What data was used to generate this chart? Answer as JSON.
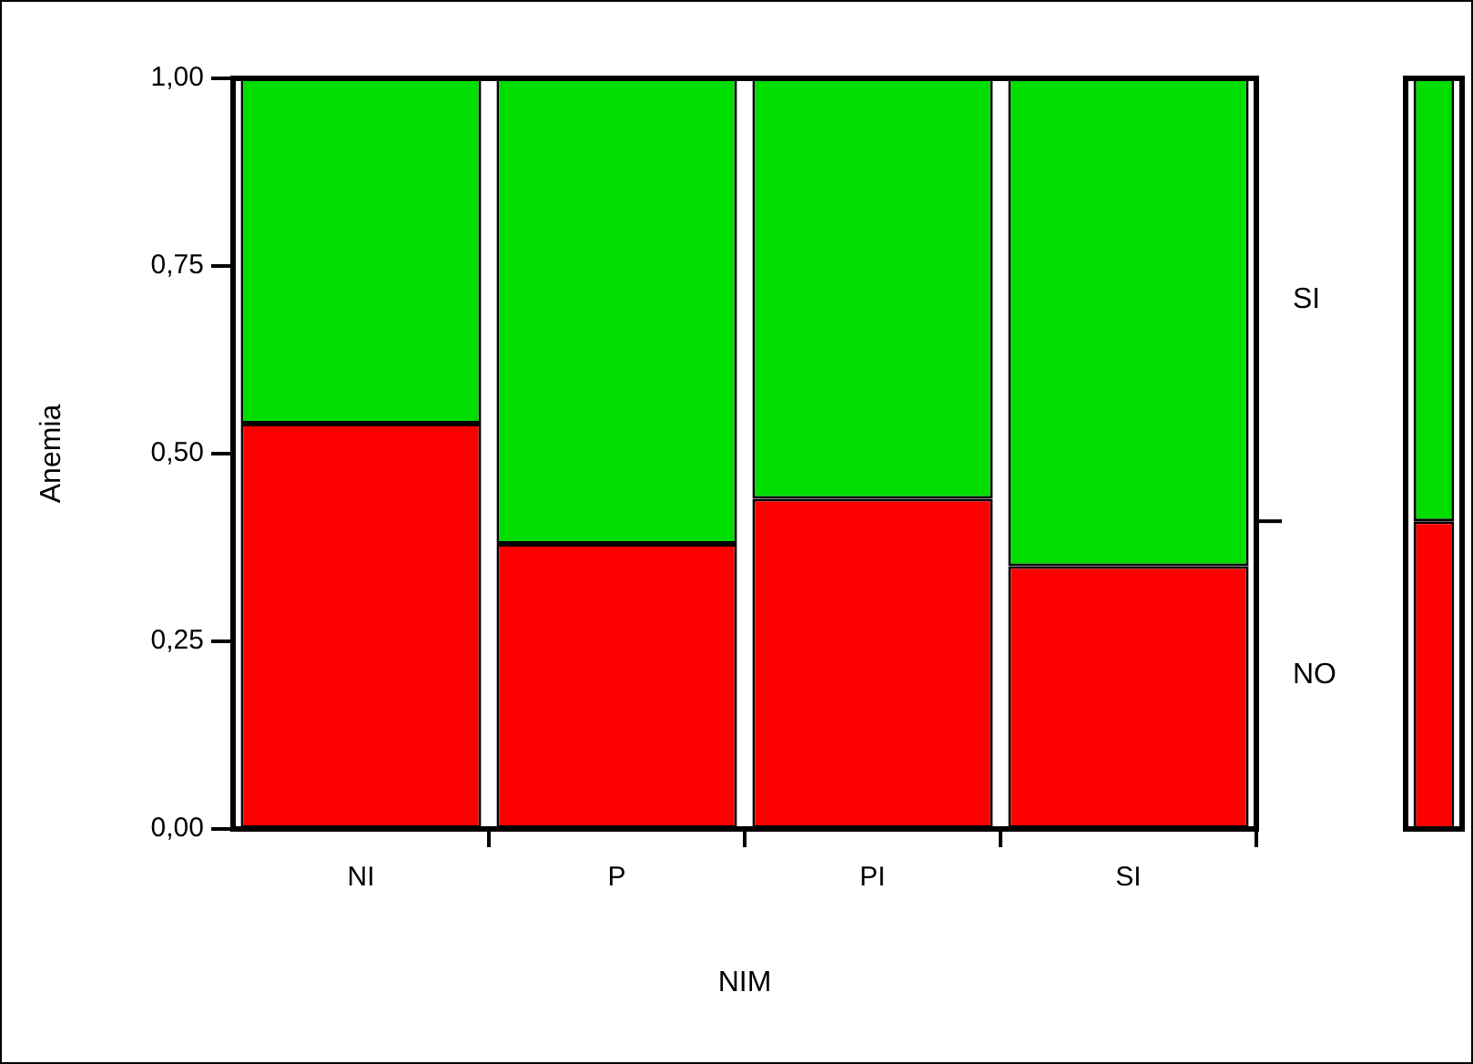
{
  "chart_data": [
    {
      "type": "bar",
      "stacked": true,
      "xlabel": "NIM",
      "ylabel": "Anemia",
      "categories": [
        "NI",
        "P",
        "PI",
        "SI"
      ],
      "ylim": [
        0,
        1
      ],
      "yticks": [
        {
          "value": 0,
          "label": "0,00"
        },
        {
          "value": 0.25,
          "label": "0,25"
        },
        {
          "value": 0.5,
          "label": "0,50"
        },
        {
          "value": 0.75,
          "label": "0,75"
        },
        {
          "value": 1,
          "label": "1,00"
        }
      ],
      "legend": false,
      "grid": false,
      "series": [
        {
          "name": "NO",
          "color": "#ff0000",
          "values": [
            0.54,
            0.38,
            0.44,
            0.35
          ]
        },
        {
          "name": "SI",
          "color": "#00dd00",
          "values": [
            0.46,
            0.62,
            0.56,
            0.65
          ]
        }
      ]
    },
    {
      "type": "bar",
      "stacked": true,
      "categories": [
        null
      ],
      "ylim": [
        0,
        1
      ],
      "tick_labels": false,
      "legend": false,
      "grid": false,
      "series": [
        {
          "color": "#ff0000",
          "values": [
            0.41
          ]
        },
        {
          "color": "#00dd00",
          "values": [
            0.59
          ]
        }
      ]
    }
  ]
}
